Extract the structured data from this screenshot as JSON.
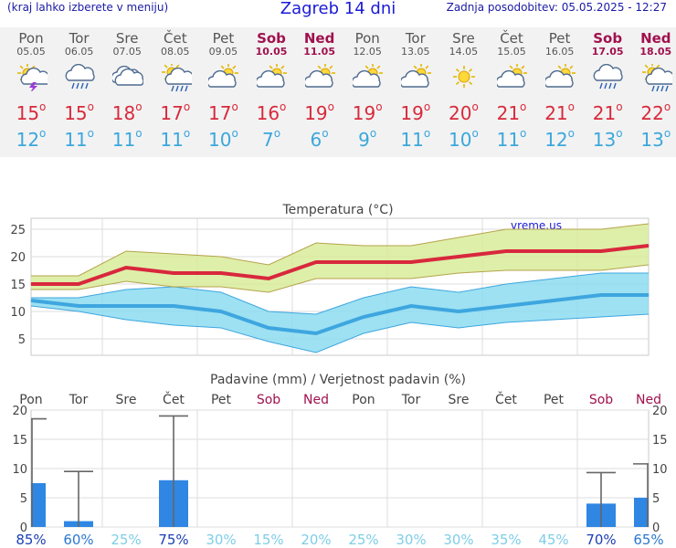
{
  "header": {
    "menu_hint": "(kraj lahko izberete v meniju)",
    "title": "Zagreb 14 dni",
    "updated": "Zadnja posodobitev: 05.05.2025 - 12:27"
  },
  "days": [
    {
      "name": "Pon",
      "date": "05.05",
      "weekend": false,
      "icon": "thunderstorm-sun-icon",
      "tmax": 15,
      "tmin": 12
    },
    {
      "name": "Tor",
      "date": "06.05",
      "weekend": false,
      "icon": "rain-cloud-icon",
      "tmax": 15,
      "tmin": 11
    },
    {
      "name": "Sre",
      "date": "07.05",
      "weekend": false,
      "icon": "cloud-icon",
      "tmax": 18,
      "tmin": 11
    },
    {
      "name": "Čet",
      "date": "08.05",
      "weekend": false,
      "icon": "sun-rain-icon",
      "tmax": 17,
      "tmin": 11
    },
    {
      "name": "Pet",
      "date": "09.05",
      "weekend": false,
      "icon": "partly-cloudy-icon",
      "tmax": 17,
      "tmin": 10
    },
    {
      "name": "Sob",
      "date": "10.05",
      "weekend": true,
      "icon": "partly-cloudy-icon",
      "tmax": 16,
      "tmin": 7
    },
    {
      "name": "Ned",
      "date": "11.05",
      "weekend": true,
      "icon": "partly-cloudy-icon",
      "tmax": 19,
      "tmin": 6
    },
    {
      "name": "Pon",
      "date": "12.05",
      "weekend": false,
      "icon": "partly-cloudy-icon",
      "tmax": 19,
      "tmin": 9
    },
    {
      "name": "Tor",
      "date": "13.05",
      "weekend": false,
      "icon": "partly-cloudy-icon",
      "tmax": 19,
      "tmin": 11
    },
    {
      "name": "Sre",
      "date": "14.05",
      "weekend": false,
      "icon": "sun-icon",
      "tmax": 20,
      "tmin": 10
    },
    {
      "name": "Čet",
      "date": "15.05",
      "weekend": false,
      "icon": "partly-cloudy-icon",
      "tmax": 21,
      "tmin": 11
    },
    {
      "name": "Pet",
      "date": "16.05",
      "weekend": false,
      "icon": "partly-cloudy-icon",
      "tmax": 21,
      "tmin": 12
    },
    {
      "name": "Sob",
      "date": "17.05",
      "weekend": true,
      "icon": "rain-cloud-icon",
      "tmax": 21,
      "tmin": 13
    },
    {
      "name": "Ned",
      "date": "18.05",
      "weekend": true,
      "icon": "sun-rain-icon",
      "tmax": 22,
      "tmin": 13
    }
  ],
  "unit_degree": "o",
  "colors": {
    "max_line": "#d8283d",
    "max_band": "#d8ec9a",
    "min_line": "#3ea6df",
    "min_band": "#8cdcf0",
    "bar": "#2f86e3",
    "weekend": "#a0114e",
    "prob_strong": "#1c3fb5",
    "prob_mid": "#2a78cf",
    "prob_light": "#7fcde8"
  },
  "chart_data": [
    {
      "type": "line",
      "title": "Temperatura (°C)",
      "watermark": "vreme.us",
      "ylim": [
        2,
        27
      ],
      "yticks": [
        5,
        10,
        15,
        20,
        25
      ],
      "grid": true,
      "series": [
        {
          "values": [
            15,
            15,
            18,
            17,
            17,
            16,
            19,
            19,
            19,
            20,
            21,
            21,
            21,
            22
          ],
          "upper": [
            16.5,
            16.5,
            21,
            20.5,
            20,
            18.5,
            22.5,
            22,
            22,
            23.5,
            25,
            25,
            25,
            26
          ],
          "lower": [
            14,
            14,
            15.5,
            14.5,
            14.5,
            13.5,
            16,
            16,
            16,
            17,
            17.5,
            17.5,
            17.5,
            18.5
          ]
        },
        {
          "values": [
            12,
            11,
            11,
            11,
            10,
            7,
            6,
            9,
            11,
            10,
            11,
            12,
            13,
            13
          ],
          "upper": [
            12.5,
            12.5,
            14,
            14.5,
            13.5,
            10,
            9.5,
            12.5,
            14.5,
            13.5,
            15,
            16,
            17,
            17
          ],
          "lower": [
            11,
            10,
            8.5,
            7.5,
            7,
            4.5,
            2.5,
            6,
            8,
            7,
            8,
            8.5,
            9,
            9.5
          ]
        }
      ]
    },
    {
      "type": "bar",
      "title": "Padavine (mm) / Verjetnost padavin (%)",
      "categories": [
        "Pon",
        "Tor",
        "Sre",
        "Čet",
        "Pet",
        "Sob",
        "Ned",
        "Pon",
        "Tor",
        "Sre",
        "Čet",
        "Pet",
        "Sob",
        "Ned"
      ],
      "weekend": [
        false,
        false,
        false,
        false,
        false,
        true,
        true,
        false,
        false,
        false,
        false,
        false,
        true,
        true
      ],
      "values": [
        7.5,
        1,
        0,
        8,
        0,
        0,
        0,
        0,
        0,
        0,
        0,
        0,
        4,
        5
      ],
      "max_range": [
        18.5,
        9.5,
        0,
        19,
        0,
        0,
        0,
        0,
        0,
        0,
        0,
        0,
        9.3,
        10.8
      ],
      "probability": [
        "85%",
        "60%",
        "25%",
        "75%",
        "30%",
        "15%",
        "20%",
        "25%",
        "30%",
        "30%",
        "35%",
        "45%",
        "70%",
        "65%"
      ],
      "ylim": [
        0,
        20
      ],
      "yticks": [
        0,
        5,
        10,
        15,
        20
      ]
    }
  ]
}
